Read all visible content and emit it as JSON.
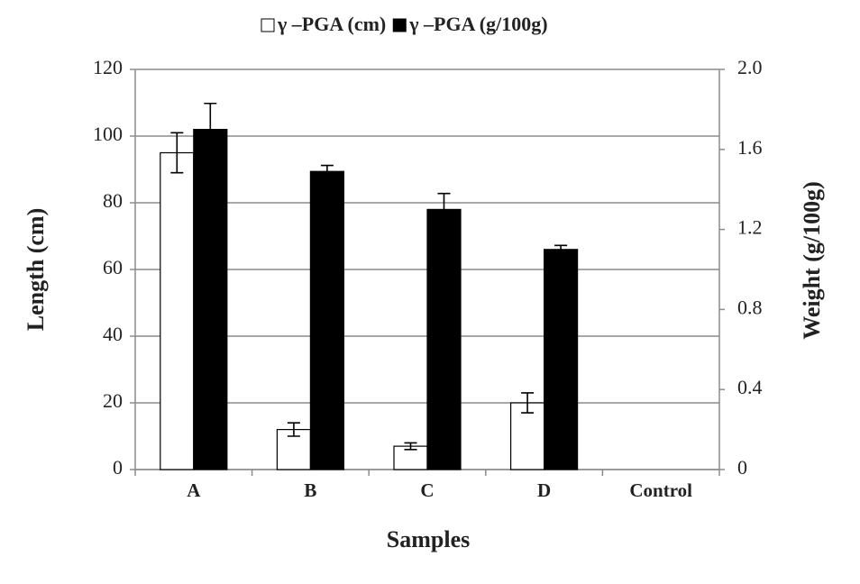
{
  "chart_data": {
    "type": "bar",
    "legend": "top",
    "xlabel": "Samples",
    "ylabel": "Length (cm)",
    "y2label": "Weight (g/100g)",
    "categories": [
      "A",
      "B",
      "C",
      "D",
      "Control"
    ],
    "series": [
      {
        "name": "γ –PGA (cm)",
        "color": "#ffffff",
        "values": [
          95,
          12,
          7,
          20,
          0
        ],
        "errors": [
          6,
          2,
          1,
          3,
          0
        ]
      },
      {
        "name": "γ –PGA (g/100g)",
        "color": "#000000",
        "axis": "y2",
        "values": [
          1.7,
          1.49,
          1.3,
          1.1,
          0
        ],
        "errors": [
          0.13,
          0.03,
          0.08,
          0.02,
          0
        ]
      }
    ],
    "ylim": [
      0,
      120
    ],
    "yticks": [
      0,
      20,
      40,
      60,
      80,
      100,
      120
    ],
    "y2lim": [
      0,
      2
    ],
    "y2ticks": [
      0,
      0.4,
      0.8,
      1.2,
      1.6,
      {
        "value": 2,
        "label": "2.0"
      }
    ],
    "grid": true
  }
}
